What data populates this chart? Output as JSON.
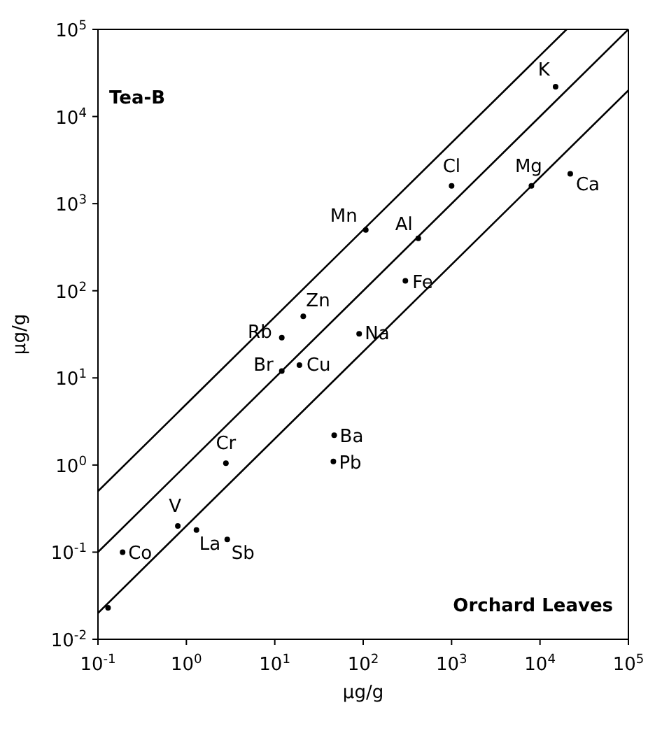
{
  "chart_data": {
    "type": "scatter",
    "xlabel": "µg/g",
    "ylabel": "µg/g",
    "log": "xy",
    "xlim": [
      0.1,
      100000
    ],
    "ylim": [
      0.01,
      100000
    ],
    "xticks": [
      {
        "value": 0.1,
        "label": "10$^{-1}$"
      },
      {
        "value": 1,
        "label": "10$^{0}$"
      },
      {
        "value": 10,
        "label": "10$^{1}$"
      },
      {
        "value": 100,
        "label": "10$^{2}$"
      },
      {
        "value": 1000,
        "label": "10$^{3}$"
      },
      {
        "value": 10000,
        "label": "10$^{4}$"
      },
      {
        "value": 100000,
        "label": "10$^{5}$"
      }
    ],
    "yticks": [
      {
        "value": 0.01,
        "label": "10$^{-2}$"
      },
      {
        "value": 0.1,
        "label": "10$^{-1}$"
      },
      {
        "value": 1,
        "label": "10$^{0}$"
      },
      {
        "value": 10,
        "label": "10$^{1}$"
      },
      {
        "value": 100,
        "label": "10$^{2}$"
      },
      {
        "value": 1000,
        "label": "10$^{3}$"
      },
      {
        "value": 10000,
        "label": "10$^{4}$"
      },
      {
        "value": 100000,
        "label": "10$^{5}$"
      }
    ],
    "series": [
      {
        "color": "#000000",
        "marker": "circle",
        "x": [
          15000,
          1000,
          8000,
          22000,
          107,
          420,
          300,
          90,
          21,
          12,
          12,
          19,
          2.8,
          0.8,
          1.3,
          2.9,
          0.19,
          0.13,
          47,
          46
        ],
        "values": [
          22000,
          1600,
          1600,
          2200,
          500,
          400,
          130,
          32,
          51,
          29,
          12,
          14,
          1.05,
          0.2,
          0.18,
          0.14,
          0.1,
          0.023,
          2.2,
          1.1
        ]
      },
      {
        "type": "line",
        "color": "#000000",
        "marker": "none",
        "line_style": "solid",
        "x": [
          0.1,
          20000
        ],
        "values": [
          0.5,
          100000
        ]
      },
      {
        "type": "line",
        "color": "#000000",
        "marker": "none",
        "line_style": "solid",
        "x": [
          0.1,
          100000
        ],
        "values": [
          0.1,
          100000
        ]
      },
      {
        "type": "line",
        "color": "#000000",
        "marker": "none",
        "line_style": "solid",
        "x": [
          0.1,
          100000
        ],
        "values": [
          0.02,
          20000
        ]
      }
    ],
    "annotations": [
      "Tea-B",
      "Orchard Leaves",
      {
        "text": "K",
        "x": 15000,
        "y": 22000
      },
      {
        "text": "Cl",
        "x": 1000,
        "y": 1600
      },
      {
        "text": "Mg",
        "x": 8000,
        "y": 1600
      },
      {
        "text": "Ca",
        "x": 22000,
        "y": 2200
      },
      {
        "text": "Mn",
        "x": 107,
        "y": 500
      },
      {
        "text": "Al",
        "x": 420,
        "y": 400
      },
      {
        "text": "Fe",
        "x": 300,
        "y": 130
      },
      {
        "text": "Na",
        "x": 90,
        "y": 32
      },
      {
        "text": "Zn",
        "x": 21,
        "y": 51
      },
      {
        "text": "Rb",
        "x": 12,
        "y": 29
      },
      {
        "text": "Br",
        "x": 12,
        "y": 12
      },
      {
        "text": "Cu",
        "x": 19,
        "y": 14
      },
      {
        "text": "Cr",
        "x": 2.8,
        "y": 1.05
      },
      {
        "text": "V",
        "x": 0.8,
        "y": 0.2
      },
      {
        "text": "La",
        "x": 1.3,
        "y": 0.18
      },
      {
        "text": "Sb",
        "x": 2.9,
        "y": 0.14
      },
      {
        "text": "Co",
        "x": 0.19,
        "y": 0.1
      },
      {
        "text": "Ba",
        "x": 47,
        "y": 2.2
      },
      {
        "text": "Pb",
        "x": 46,
        "y": 1.1
      }
    ]
  }
}
